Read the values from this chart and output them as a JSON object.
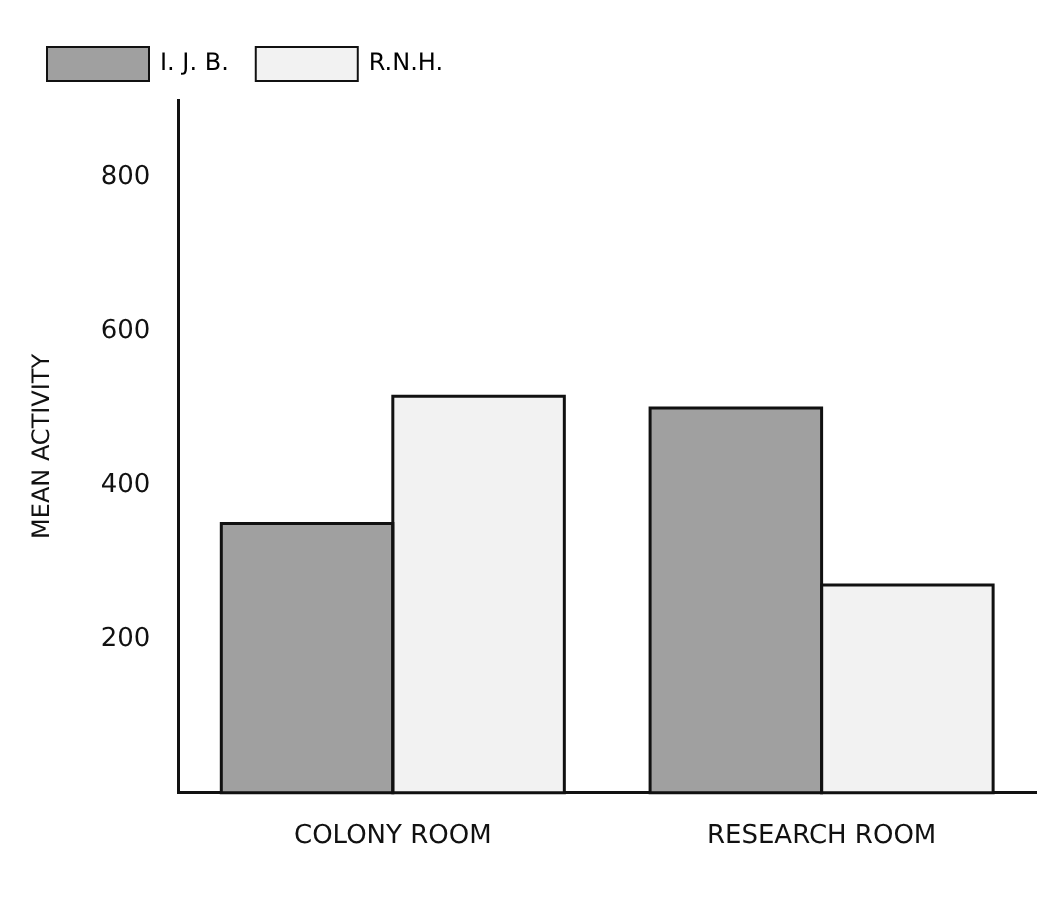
{
  "chart_data": {
    "type": "bar",
    "ylabel": "MEAN ACTIVITY",
    "categories": [
      "COLONY ROOM",
      "RESEARCH ROOM"
    ],
    "series": [
      {
        "name": "I. J. B.",
        "color": "#a0a0a0",
        "values": [
          350,
          500
        ]
      },
      {
        "name": "R.N.H.",
        "color": "#f2f2f2",
        "values": [
          515,
          270
        ]
      }
    ],
    "ylim": [
      0,
      900
    ],
    "yticks": [
      200,
      400,
      600,
      800
    ],
    "grid": false,
    "legend": "top left"
  }
}
